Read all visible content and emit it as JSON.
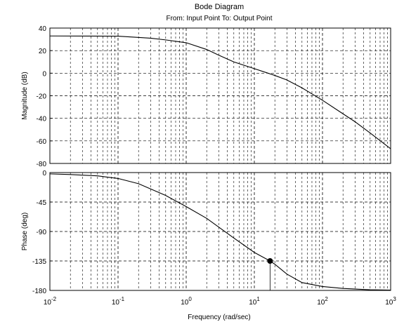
{
  "chart_data": {
    "type": "line",
    "title": "Bode Diagram",
    "subtitle": "From: Input Point  To: Output Point",
    "xlabel": "Frequency  (rad/sec)",
    "x_scale": "log",
    "xlim": [
      0.01,
      1000
    ],
    "x_ticks": [
      0.01,
      0.1,
      1,
      10,
      100,
      1000
    ],
    "x_tick_labels": [
      {
        "base": "10",
        "exp": "-2"
      },
      {
        "base": "10",
        "exp": "-1"
      },
      {
        "base": "10",
        "exp": "0"
      },
      {
        "base": "10",
        "exp": "1"
      },
      {
        "base": "10",
        "exp": "2"
      },
      {
        "base": "10",
        "exp": "3"
      }
    ],
    "grid": true,
    "panels": [
      {
        "name": "magnitude",
        "ylabel": "Magnitude (dB)",
        "ylim": [
          -80,
          40
        ],
        "yticks": [
          40,
          20,
          0,
          -20,
          -40,
          -60,
          -80
        ],
        "series": [
          {
            "x": [
              0.01,
              0.1,
              0.3,
              0.5,
              1,
              2,
              3,
              5,
              10,
              20,
              30,
              50,
              100,
              200,
              300,
              500,
              1000
            ],
            "y": [
              33,
              32.8,
              31,
              29.5,
              27,
              21,
              16,
              10,
              4,
              -2,
              -6,
              -13,
              -24,
              -36,
              -43,
              -53,
              -67
            ]
          }
        ]
      },
      {
        "name": "phase",
        "ylabel": "Phase (deg)",
        "ylim": [
          -180,
          0
        ],
        "yticks": [
          0,
          -45,
          -90,
          -135,
          -180
        ],
        "series": [
          {
            "x": [
              0.01,
              0.02,
              0.05,
              0.1,
              0.2,
              0.5,
              1,
              2,
              5,
              10,
              17,
              20,
              30,
              50,
              100,
              200,
              500,
              1000
            ],
            "y": [
              -2,
              -3,
              -5,
              -9,
              -17,
              -35,
              -52,
              -70,
              -100,
              -122,
              -135,
              -140,
              -155,
              -168,
              -174,
              -177,
              -179,
              -179.5
            ]
          }
        ],
        "marker": {
          "x": 17,
          "y": -135
        }
      }
    ]
  }
}
